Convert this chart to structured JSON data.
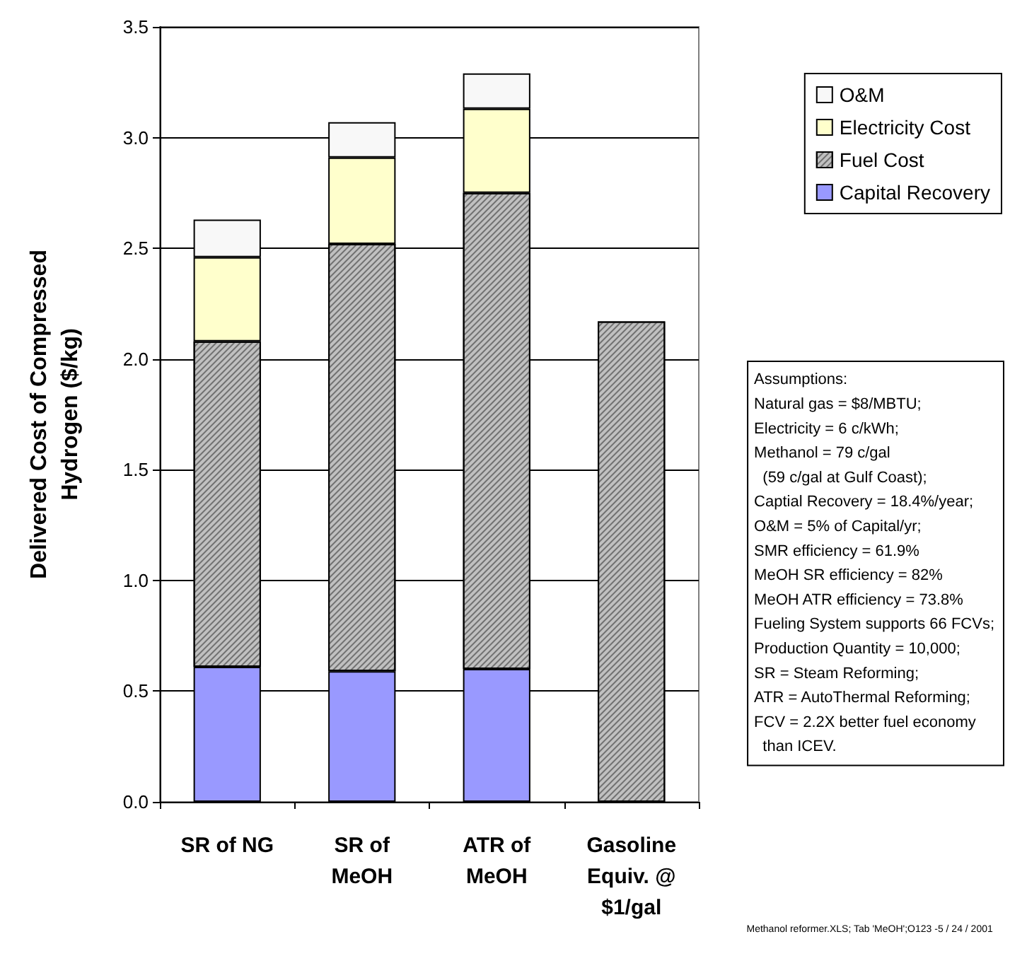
{
  "chart_data": {
    "type": "bar",
    "stacked": true,
    "ylabel": "Delivered Cost of Compressed\nHydrogen ($/kg)",
    "categories": [
      "SR of NG",
      "SR of\nMeOH",
      "ATR of\nMeOH",
      "Gasoline\nEquiv. @\n$1/gal"
    ],
    "series": [
      {
        "name": "Capital Recovery",
        "color": "#9999ff",
        "values": [
          0.61,
          0.59,
          0.6,
          null
        ]
      },
      {
        "name": "Fuel Cost",
        "color": "#c0c0c0",
        "values": [
          1.47,
          1.93,
          2.15,
          2.17
        ]
      },
      {
        "name": "Electricity Cost",
        "color": "#ffffcc",
        "values": [
          0.38,
          0.39,
          0.38,
          null
        ]
      },
      {
        "name": "O&M",
        "color": "#f8f8f8",
        "values": [
          0.17,
          0.16,
          0.16,
          null
        ]
      }
    ],
    "ylim": [
      0,
      3.5
    ],
    "yticks": [
      {
        "value": 0,
        "label": "0.0"
      },
      0.5,
      {
        "value": 1,
        "label": "1.0"
      },
      1.5,
      {
        "value": 2,
        "label": "2.0"
      },
      2.5,
      {
        "value": 3,
        "label": "3.0"
      },
      3.5
    ],
    "grid": "y",
    "legend": "top right",
    "annotations": [
      "Assumptions:\nNatural gas = $8/MBTU;\nElectricity = 6 c/kWh;\nMethanol = 79 c/gal\n  (59 c/gal at Gulf Coast);\nCaptial Recovery = 18.4%/year;\nO&M = 5% of Capital/yr;\nSMR efficiency = 61.9%\nMeOH SR efficiency = 82%\nMeOH ATR efficiency = 73.8%\nFueling System supports 66 FCVs;\nProduction Quantity = 10,000;\nSR = Steam Reforming;\nATR = AutoThermal Reforming;\nFCV = 2.2X better fuel economy\n  than ICEV.",
      "Methanol reformer.XLS; Tab 'MeOH';O123 -5 / 24 / 2001"
    ]
  }
}
